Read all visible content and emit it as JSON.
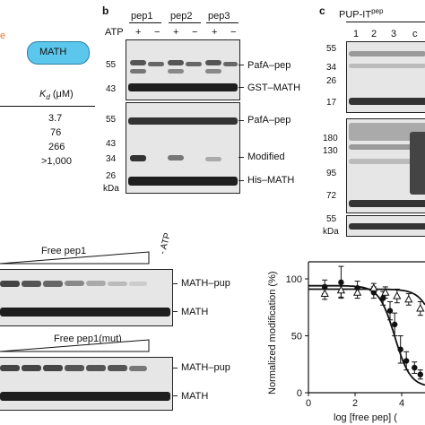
{
  "panel_a": {
    "e_letter": "e",
    "math_label": "MATH",
    "kd_header": "K",
    "kd_sub": "d",
    "kd_unit": " (μM)",
    "kd_values": [
      "3.7",
      "76",
      "266",
      ">1,000"
    ]
  },
  "panel_b": {
    "letter": "b",
    "lanes": [
      "pep1",
      "pep2",
      "pep3"
    ],
    "atp_label": "ATP",
    "atp_signs": [
      "+",
      "−",
      "+",
      "−",
      "+",
      "−"
    ],
    "top_markers": [
      "55",
      "43"
    ],
    "top_labels": [
      "PafA–pep",
      "GST–MATH"
    ],
    "bottom_markers": [
      "55",
      "43",
      "34",
      "26"
    ],
    "bottom_labels": [
      "PafA–pep",
      "Modified",
      "His–MATH"
    ],
    "kda": "kDa"
  },
  "panel_c": {
    "letter": "c",
    "title": "PUP-IT",
    "title_sup": "pep",
    "lanes": [
      "1",
      "2",
      "3",
      "c"
    ],
    "top_markers": [
      "55",
      "34",
      "26",
      "17"
    ],
    "mid_markers": [
      "180",
      "130",
      "95",
      "72"
    ],
    "bottom_markers": [
      "55"
    ],
    "kda": "kDa"
  },
  "panel_d": {
    "gel1_title": "Free pep1",
    "minus_atp": "- ATP",
    "gel1_labels": [
      "MATH–pup",
      "MATH"
    ],
    "gel2_title": "Free pep1(mut)",
    "gel2_labels": [
      "MATH–pup",
      "MATH"
    ]
  },
  "chart_data": {
    "type": "scatter",
    "xlabel": "log [free pep] (",
    "ylabel": "Normalized modification (%)",
    "xlim": [
      0,
      5
    ],
    "ylim": [
      0,
      115
    ],
    "xticks": [
      "0",
      "2",
      "4"
    ],
    "yticks": [
      "0",
      "50",
      "100"
    ],
    "series": [
      {
        "marker": "circle",
        "x": [
          0.7,
          1.4,
          2.1,
          2.8,
          3.2,
          3.5,
          3.7,
          3.95,
          4.2,
          4.55,
          4.8
        ],
        "y": [
          93,
          97,
          92,
          88,
          83,
          72,
          60,
          38,
          28,
          22,
          16
        ],
        "err": [
          6,
          14,
          6,
          5,
          6,
          8,
          10,
          12,
          8,
          5,
          4
        ]
      },
      {
        "marker": "triangle",
        "x": [
          0.7,
          1.4,
          2.1,
          2.8,
          3.3,
          3.8,
          4.3,
          4.8
        ],
        "y": [
          87,
          90,
          88,
          92,
          88,
          85,
          82,
          74
        ],
        "err": [
          5,
          6,
          5,
          4,
          5,
          6,
          5,
          6
        ]
      }
    ],
    "fits": [
      {
        "top": 94,
        "bottom": 5,
        "logEC50": 3.7,
        "hill": 1.3
      },
      {
        "top": 91,
        "bottom": 5,
        "logEC50": 5.6,
        "hill": 1.2
      }
    ]
  }
}
